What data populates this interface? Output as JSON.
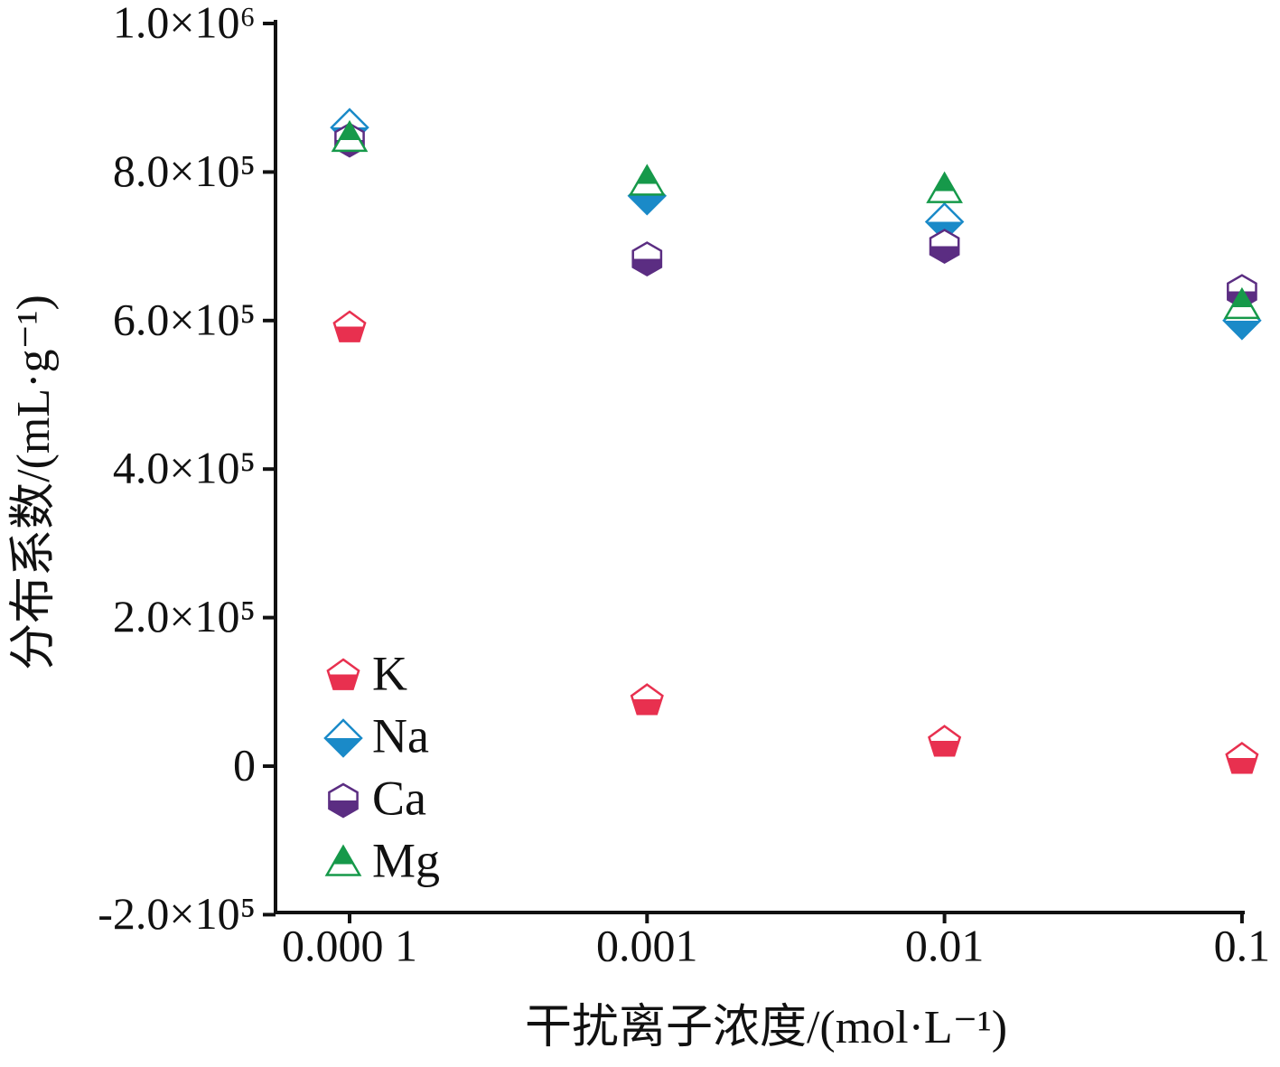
{
  "chart_data": {
    "type": "scatter",
    "x_label": "干扰离子浓度/(mol·L⁻¹)",
    "y_label": "分布系数/(mL·g⁻¹)",
    "categories": [
      "0.000 1",
      "0.001",
      "0.01",
      "0.1"
    ],
    "ylim": [
      -200000,
      1000000
    ],
    "yticks": [
      {
        "value": -200000,
        "label": "-2.0×10⁵"
      },
      0,
      {
        "value": 200000,
        "label": "2.0×10⁵"
      },
      {
        "value": 400000,
        "label": "4.0×10⁵"
      },
      {
        "value": 600000,
        "label": "6.0×10⁵"
      },
      {
        "value": 800000,
        "label": "8.0×10⁵"
      },
      {
        "value": 1000000,
        "label": "1.0×10⁶"
      }
    ],
    "legend": "lower left",
    "series": [
      {
        "name": "K",
        "color": "#e8304f",
        "marker": "pentagon",
        "values": [
          590000,
          88000,
          32000,
          9000
        ]
      },
      {
        "name": "Na",
        "color": "#1a8ac8",
        "marker": "diamond",
        "values": [
          860000,
          768000,
          733000,
          600000
        ]
      },
      {
        "name": "Ca",
        "color": "#5b2d82",
        "marker": "hexagon",
        "values": [
          843000,
          683000,
          700000,
          639000
        ]
      },
      {
        "name": "Mg",
        "color": "#16994a",
        "marker": "triangle",
        "values": [
          845000,
          786000,
          776000,
          620000
        ]
      }
    ]
  }
}
